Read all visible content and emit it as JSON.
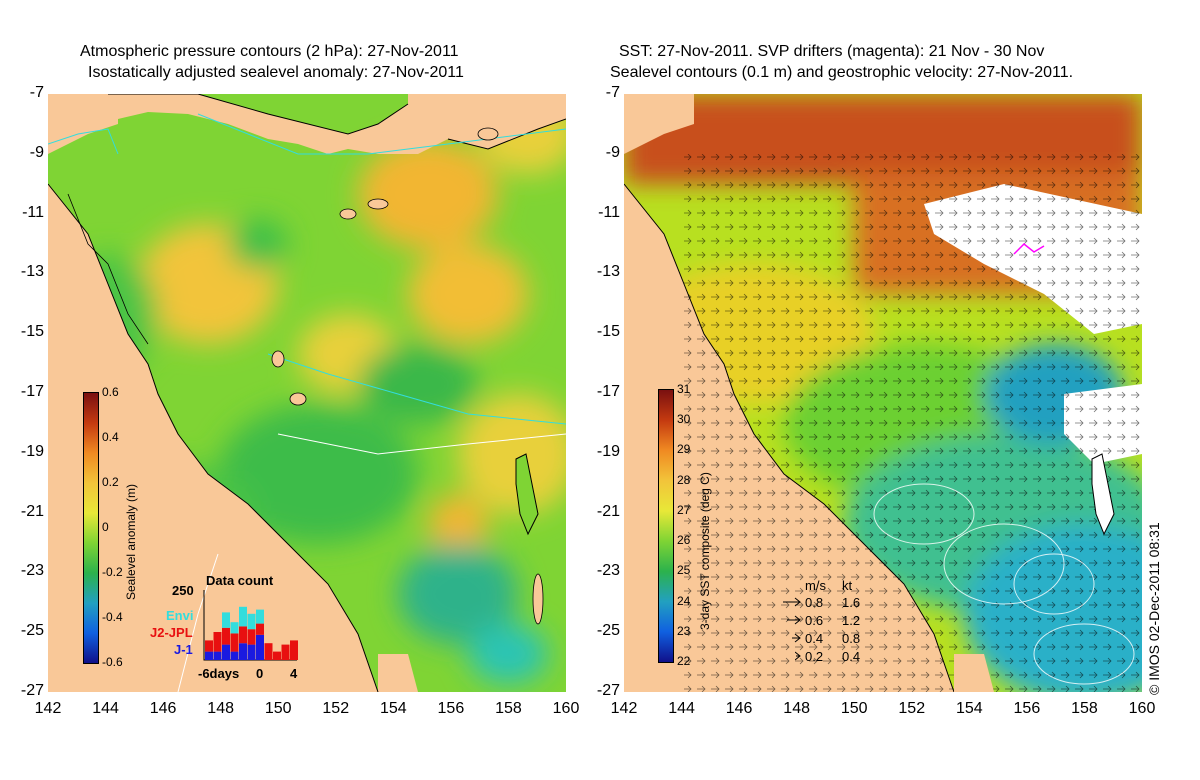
{
  "left_panel": {
    "title_line1": "Atmospheric pressure contours (2 hPa): 27-Nov-2011",
    "title_line2": "Isostatically adjusted sealevel anomaly: 27-Nov-2011",
    "colorbar": {
      "label": "Sealevel anomaly (m)",
      "ticks": [
        "0.6",
        "0.4",
        "0.2",
        "0",
        "-0.2",
        "-0.4",
        "-0.6"
      ],
      "range": [
        -0.6,
        0.6
      ]
    },
    "data_count": {
      "title": "Data count",
      "ymax_label": "250",
      "legend": [
        {
          "name": "Envi",
          "color": "#33dddd"
        },
        {
          "name": "J2-JPL",
          "color": "#e81010"
        },
        {
          "name": "J-1",
          "color": "#1a1ae0"
        }
      ],
      "x_labels": [
        "-6days",
        "0",
        "4"
      ],
      "bars": [
        {
          "envi": 0,
          "j2": 40,
          "j1": 30
        },
        {
          "envi": 0,
          "j2": 70,
          "j1": 30
        },
        {
          "envi": 55,
          "j2": 60,
          "j1": 55
        },
        {
          "envi": 40,
          "j2": 65,
          "j1": 30
        },
        {
          "envi": 70,
          "j2": 60,
          "j1": 60
        },
        {
          "envi": 55,
          "j2": 55,
          "j1": 55
        },
        {
          "envi": 50,
          "j2": 40,
          "j1": 90
        },
        {
          "envi": 0,
          "j2": 60,
          "j1": 0
        },
        {
          "envi": 0,
          "j2": 30,
          "j1": 0
        },
        {
          "envi": 0,
          "j2": 55,
          "j1": 0
        },
        {
          "envi": 0,
          "j2": 70,
          "j1": 0
        }
      ]
    }
  },
  "right_panel": {
    "title_line1": "SST: 27-Nov-2011. SVP drifters (magenta): 21 Nov - 30 Nov",
    "title_line2": "Sealevel contours (0.1 m) and geostrophic velocity: 27-Nov-2011.",
    "colorbar": {
      "label": "3-day SST composite (deg C)",
      "ticks": [
        "31",
        "30",
        "29",
        "28",
        "27",
        "26",
        "25",
        "24",
        "23",
        "22"
      ],
      "range": [
        22,
        31
      ]
    },
    "velocity_legend": {
      "header_ms": "m/s",
      "header_kt": "kt",
      "rows": [
        {
          "ms": "0.8",
          "kt": "1.6"
        },
        {
          "ms": "0.6",
          "kt": "1.2"
        },
        {
          "ms": "0.4",
          "kt": "0.8"
        },
        {
          "ms": "0.2",
          "kt": "0.4"
        }
      ]
    },
    "credit": "© IMOS 02-Dec-2011 08:31"
  },
  "axes": {
    "lat_labels": [
      "-7",
      "-9",
      "-11",
      "-13",
      "-15",
      "-17",
      "-19",
      "-21",
      "-23",
      "-25",
      "-27"
    ],
    "lon_labels": [
      "142",
      "144",
      "146",
      "148",
      "150",
      "152",
      "154",
      "156",
      "158",
      "160"
    ],
    "lat_range": [
      -27,
      -7
    ],
    "lon_range": [
      142,
      160
    ]
  },
  "colors": {
    "land": "#f9c898",
    "sla_mid": "#7fd434",
    "sla_high": "#f2b632",
    "sla_low": "#2cb24c",
    "sst_warm": "#c8501c",
    "sst_mid": "#b8e020",
    "sst_cool": "#2ab0c8"
  }
}
